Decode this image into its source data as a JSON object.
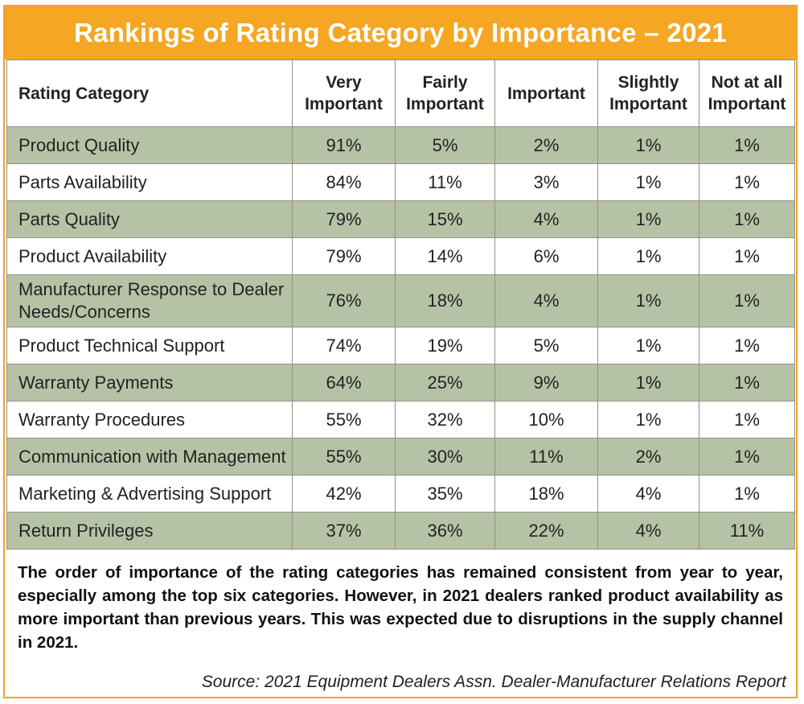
{
  "chart_data": {
    "type": "table",
    "title": "Rankings of Rating Category by Importance – 2021",
    "columns": [
      "Rating Category",
      "Very Important",
      "Fairly Important",
      "Important",
      "Slightly Important",
      "Not at all Important"
    ],
    "rows": [
      {
        "category": "Product Quality",
        "values": [
          "91%",
          "5%",
          "2%",
          "1%",
          "1%"
        ]
      },
      {
        "category": "Parts Availability",
        "values": [
          "84%",
          "11%",
          "3%",
          "1%",
          "1%"
        ]
      },
      {
        "category": "Parts Quality",
        "values": [
          "79%",
          "15%",
          "4%",
          "1%",
          "1%"
        ]
      },
      {
        "category": "Product Availability",
        "values": [
          "79%",
          "14%",
          "6%",
          "1%",
          "1%"
        ]
      },
      {
        "category": "Manufacturer Response to Dealer Needs/Concerns",
        "values": [
          "76%",
          "18%",
          "4%",
          "1%",
          "1%"
        ]
      },
      {
        "category": "Product Technical Support",
        "values": [
          "74%",
          "19%",
          "5%",
          "1%",
          "1%"
        ]
      },
      {
        "category": "Warranty Payments",
        "values": [
          "64%",
          "25%",
          "9%",
          "1%",
          "1%"
        ]
      },
      {
        "category": "Warranty Procedures",
        "values": [
          "55%",
          "32%",
          "10%",
          "1%",
          "1%"
        ]
      },
      {
        "category": "Communication with Management",
        "values": [
          "55%",
          "30%",
          "11%",
          "2%",
          "1%"
        ]
      },
      {
        "category": "Marketing & Advertising Support",
        "values": [
          "42%",
          "35%",
          "18%",
          "4%",
          "1%"
        ]
      },
      {
        "category": "Return Privileges",
        "values": [
          "37%",
          "36%",
          "22%",
          "4%",
          "11%"
        ]
      }
    ]
  },
  "note": "The order of importance of the rating categories has remained consistent from year to year, especially among the top six categories. However, in 2021 dealers ranked product availability as more important than previous years. This was expected due to disruptions in the supply channel in 2021.",
  "source": "Source: 2021 Equipment Dealers Assn. Dealer-Manufacturer Relations Report",
  "colors": {
    "title_bar": "#f5a623",
    "shaded_row": "#b6c2a5",
    "border": "#8f9385"
  }
}
